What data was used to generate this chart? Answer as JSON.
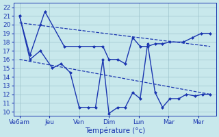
{
  "x_labels": [
    "Ve6am",
    "Jeu",
    "Ven",
    "Dim",
    "Lun",
    "Mar",
    "Mer"
  ],
  "line_max": {
    "x": [
      0.0,
      0.35,
      0.7,
      0.85,
      1.5,
      2.0,
      2.5,
      2.8,
      3.0,
      3.3,
      3.55,
      3.8,
      4.05,
      4.3,
      4.55,
      4.8,
      5.05,
      5.5,
      5.8,
      6.1,
      6.4
    ],
    "y": [
      21.0,
      16.5,
      20.0,
      21.5,
      17.5,
      17.5,
      17.5,
      17.5,
      16.0,
      16.0,
      15.5,
      18.5,
      17.5,
      17.5,
      17.8,
      17.8,
      18.0,
      18.0,
      18.5,
      19.0,
      19.0
    ]
  },
  "line_min": {
    "x": [
      0.0,
      0.35,
      0.7,
      1.1,
      1.4,
      1.7,
      2.0,
      2.3,
      2.55,
      2.8,
      3.0,
      3.3,
      3.55,
      3.8,
      4.05,
      4.3,
      4.55,
      4.8,
      5.05,
      5.35,
      5.6,
      5.9,
      6.15,
      6.4
    ],
    "y": [
      21.0,
      16.0,
      17.0,
      15.0,
      15.5,
      14.5,
      10.5,
      10.5,
      10.5,
      16.0,
      9.8,
      10.5,
      10.5,
      12.2,
      11.5,
      17.8,
      12.2,
      10.5,
      11.5,
      11.5,
      12.0,
      11.8,
      12.0,
      12.0
    ]
  },
  "trend_high": {
    "x": [
      0.0,
      6.4
    ],
    "y": [
      20.2,
      17.5
    ]
  },
  "trend_low": {
    "x": [
      0.0,
      6.4
    ],
    "y": [
      16.0,
      12.0
    ]
  },
  "x_tick_positions": [
    0.0,
    1.0,
    2.0,
    3.0,
    4.0,
    5.0,
    6.0
  ],
  "x_tick_labels": [
    "Ve6am",
    "Jeu",
    "Ven",
    "Dim",
    "Lun",
    "Mar",
    "Mer"
  ],
  "xlim": [
    -0.2,
    6.6
  ],
  "ylim": [
    9.5,
    22.5
  ],
  "yticks": [
    10,
    11,
    12,
    13,
    14,
    15,
    16,
    17,
    18,
    19,
    20,
    21,
    22
  ],
  "xlabel": "Température (°c)",
  "bg_color": "#c8e8ec",
  "line_color": "#1a35b0",
  "grid_color": "#9dc4cc",
  "tick_fontsize": 6.5,
  "xlabel_fontsize": 7.5,
  "linewidth": 1.0,
  "markersize": 2.5
}
